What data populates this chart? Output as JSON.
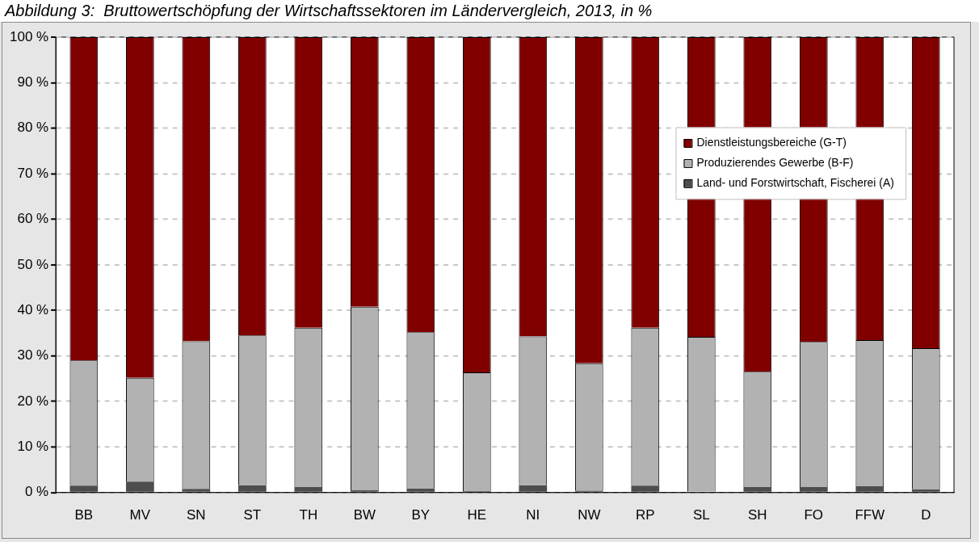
{
  "chart_data": {
    "type": "bar",
    "title": "Abbildung 3:  Bruttowertschöpfung der Wirtschaftssektoren im Ländervergleich, 2013, in %",
    "categories": [
      "BB",
      "MV",
      "SN",
      "ST",
      "TH",
      "BW",
      "BY",
      "HE",
      "NI",
      "NW",
      "RP",
      "SL",
      "SH",
      "FO",
      "FFW",
      "D"
    ],
    "stacked": true,
    "series": [
      {
        "name": "Land- und Forstwirtschaft, Fischerei (A)",
        "color": "#4d4d4d",
        "values": [
          1.5,
          2.4,
          0.8,
          1.6,
          1.2,
          0.5,
          0.9,
          0.3,
          1.6,
          0.4,
          1.5,
          0.2,
          1.2,
          1.2,
          1.4,
          0.7
        ]
      },
      {
        "name": "Produzierendes Gewerbe (B-F)",
        "color": "#b2b2b2",
        "values": [
          27.5,
          22.8,
          32.4,
          32.9,
          35.0,
          40.3,
          34.3,
          26.1,
          32.7,
          28.0,
          34.7,
          34.0,
          25.3,
          31.9,
          32.1,
          31.0
        ]
      },
      {
        "name": "Dienstleistungsbereiche (G-T)",
        "color": "#800000",
        "values": [
          71.0,
          74.8,
          66.8,
          65.5,
          63.8,
          59.2,
          64.8,
          73.6,
          65.7,
          71.6,
          63.8,
          65.8,
          73.5,
          66.9,
          66.5,
          68.3
        ]
      }
    ],
    "ylim": [
      0,
      100
    ],
    "yticks": [
      {
        "value": 0,
        "label": "0 %"
      },
      {
        "value": 10,
        "label": "10 %"
      },
      {
        "value": 20,
        "label": "20 %"
      },
      {
        "value": 30,
        "label": "30 %"
      },
      {
        "value": 40,
        "label": "40 %"
      },
      {
        "value": 50,
        "label": "50 %"
      },
      {
        "value": 60,
        "label": "60 %"
      },
      {
        "value": 70,
        "label": "70 %"
      },
      {
        "value": 80,
        "label": "80 %"
      },
      {
        "value": 90,
        "label": "90 %"
      },
      {
        "value": 100,
        "label": "100 %"
      }
    ],
    "grid": "y",
    "legend": "top right"
  }
}
